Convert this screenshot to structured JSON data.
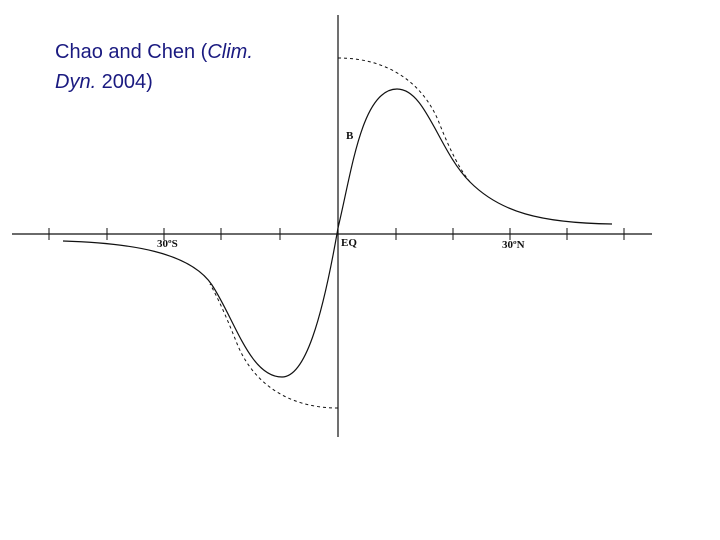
{
  "citation": {
    "part1": "Chao and Chen (",
    "journal_a": "Clim.",
    "journal_b": "Dyn.",
    "part2": " 2004)"
  },
  "figure": {
    "label_b": "B",
    "label_eq": "EQ",
    "label_30s": "30ºS",
    "label_30n": "30ºN"
  },
  "colors": {
    "citation_text": "#1a1a80",
    "line": "#111111"
  }
}
